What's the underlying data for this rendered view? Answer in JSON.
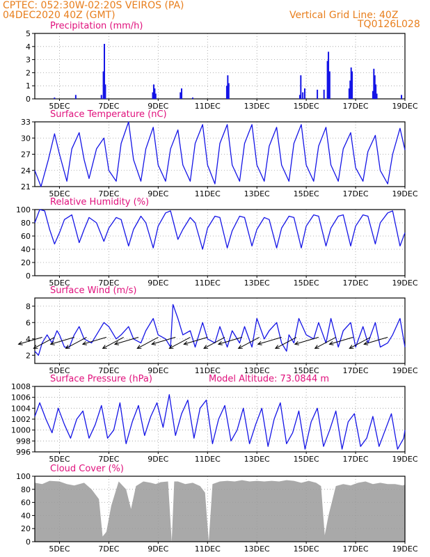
{
  "header": {
    "line1_left": "CPTEC:   052:30W-02:20S   VEIROS (PA)",
    "line2_left": "04DEC2020 40Z (GMT)",
    "line1_right": "Vertical Grid Line: 40Z",
    "line2_right": "TQ0126L028"
  },
  "chart_data": [
    {
      "type": "bar",
      "title": "Precipitation (mm/h)",
      "ylim": [
        0,
        5
      ],
      "yticks": [
        "0",
        "1",
        "2",
        "3",
        "4",
        "5"
      ],
      "xticks": [
        "5DEC",
        "7DEC",
        "9DEC",
        "11DEC",
        "13DEC",
        "15DEC",
        "17DEC",
        "19DEC"
      ],
      "color": "#1414e6",
      "grid": true,
      "bars": [
        {
          "day": 4.8,
          "value": 0.1
        },
        {
          "day": 5.66,
          "value": 0.3
        },
        {
          "day": 6.7,
          "value": 0.3
        },
        {
          "day": 6.78,
          "value": 2.1
        },
        {
          "day": 6.82,
          "value": 4.2
        },
        {
          "day": 6.86,
          "value": 1.1
        },
        {
          "day": 8.78,
          "value": 0.5
        },
        {
          "day": 8.82,
          "value": 1.1
        },
        {
          "day": 8.86,
          "value": 0.8
        },
        {
          "day": 8.9,
          "value": 0.4
        },
        {
          "day": 9.9,
          "value": 0.5
        },
        {
          "day": 9.95,
          "value": 0.8
        },
        {
          "day": 10.4,
          "value": 0.1
        },
        {
          "day": 11.78,
          "value": 1.0
        },
        {
          "day": 11.82,
          "value": 1.8
        },
        {
          "day": 11.86,
          "value": 1.2
        },
        {
          "day": 14.74,
          "value": 0.3
        },
        {
          "day": 14.78,
          "value": 1.8
        },
        {
          "day": 14.86,
          "value": 0.5
        },
        {
          "day": 14.94,
          "value": 0.8
        },
        {
          "day": 15.45,
          "value": 0.7
        },
        {
          "day": 15.72,
          "value": 0.7
        },
        {
          "day": 15.86,
          "value": 2.9
        },
        {
          "day": 15.9,
          "value": 3.6
        },
        {
          "day": 15.95,
          "value": 2.1
        },
        {
          "day": 16.74,
          "value": 0.8
        },
        {
          "day": 16.78,
          "value": 1.4
        },
        {
          "day": 16.82,
          "value": 2.4
        },
        {
          "day": 16.86,
          "value": 2.1
        },
        {
          "day": 17.7,
          "value": 0.6
        },
        {
          "day": 17.74,
          "value": 2.3
        },
        {
          "day": 17.78,
          "value": 1.8
        },
        {
          "day": 17.82,
          "value": 1.1
        },
        {
          "day": 17.86,
          "value": 0.4
        },
        {
          "day": 18.86,
          "value": 0.3
        }
      ]
    },
    {
      "type": "line",
      "title": "Surface Temperature (nC)",
      "ylim": [
        21,
        33
      ],
      "yticks": [
        "21",
        "24",
        "27",
        "30",
        "33"
      ],
      "xticks": [
        "5DEC",
        "7DEC",
        "9DEC",
        "11DEC",
        "13DEC",
        "15DEC",
        "17DEC",
        "19DEC"
      ],
      "color": "#1414e6",
      "grid": true,
      "x": [
        4.0,
        4.25,
        4.55,
        4.8,
        5.0,
        5.3,
        5.5,
        5.8,
        6.0,
        6.2,
        6.5,
        6.8,
        7.0,
        7.3,
        7.5,
        7.8,
        8.0,
        8.3,
        8.5,
        8.8,
        9.0,
        9.3,
        9.5,
        9.8,
        10.0,
        10.3,
        10.5,
        10.8,
        11.0,
        11.3,
        11.5,
        11.8,
        12.0,
        12.3,
        12.5,
        12.8,
        13.0,
        13.3,
        13.5,
        13.8,
        14.0,
        14.3,
        14.5,
        14.8,
        15.0,
        15.3,
        15.5,
        15.8,
        16.0,
        16.3,
        16.5,
        16.8,
        17.0,
        17.3,
        17.5,
        17.8,
        18.0,
        18.3,
        18.5,
        18.8,
        19.0
      ],
      "y": [
        24.0,
        21.0,
        26.0,
        30.8,
        27.0,
        22.0,
        28.0,
        31.0,
        26.0,
        22.5,
        28.0,
        30.0,
        24.0,
        22.0,
        29.0,
        33.0,
        26.0,
        22.0,
        28.0,
        32.0,
        25.0,
        22.0,
        28.0,
        31.5,
        25.0,
        22.0,
        29.0,
        32.5,
        25.0,
        21.5,
        29.0,
        32.5,
        25.0,
        22.0,
        29.0,
        32.5,
        25.0,
        22.0,
        28.5,
        32.0,
        25.0,
        22.0,
        29.0,
        32.5,
        25.0,
        22.0,
        28.5,
        32.0,
        25.0,
        22.0,
        28.0,
        31.0,
        24.5,
        22.0,
        27.5,
        30.5,
        24.0,
        21.5,
        27.0,
        31.8,
        27.8
      ]
    },
    {
      "type": "line",
      "title": "Relative Humidity (%)",
      "ylim": [
        0,
        100
      ],
      "yticks": [
        "0",
        "20",
        "40",
        "60",
        "80",
        "100"
      ],
      "xticks": [
        "5DEC",
        "7DEC",
        "9DEC",
        "11DEC",
        "13DEC",
        "15DEC",
        "17DEC",
        "19DEC"
      ],
      "color": "#1414e6",
      "grid": true,
      "x": [
        4.0,
        4.2,
        4.4,
        4.6,
        4.8,
        5.0,
        5.2,
        5.5,
        5.8,
        6.0,
        6.2,
        6.5,
        6.8,
        7.0,
        7.3,
        7.5,
        7.8,
        8.0,
        8.3,
        8.5,
        8.8,
        9.0,
        9.3,
        9.5,
        9.8,
        10.0,
        10.3,
        10.5,
        10.8,
        11.0,
        11.3,
        11.5,
        11.8,
        12.0,
        12.3,
        12.5,
        12.8,
        13.0,
        13.3,
        13.5,
        13.8,
        14.0,
        14.3,
        14.5,
        14.8,
        15.0,
        15.3,
        15.5,
        15.8,
        16.0,
        16.3,
        16.5,
        16.8,
        17.0,
        17.3,
        17.5,
        17.8,
        18.0,
        18.3,
        18.5,
        18.8,
        19.0
      ],
      "y": [
        80,
        100,
        98,
        70,
        48,
        65,
        85,
        92,
        50,
        70,
        88,
        80,
        52,
        72,
        88,
        85,
        45,
        70,
        90,
        80,
        42,
        75,
        95,
        98,
        55,
        70,
        88,
        80,
        40,
        72,
        90,
        88,
        42,
        68,
        90,
        88,
        45,
        70,
        88,
        85,
        42,
        72,
        90,
        88,
        42,
        75,
        92,
        90,
        45,
        72,
        90,
        92,
        45,
        75,
        92,
        90,
        48,
        80,
        95,
        98,
        45,
        65
      ]
    },
    {
      "type": "line",
      "title": "Surface Wind (m/s)",
      "ylim": [
        1,
        9
      ],
      "yticks": [
        "2",
        "4",
        "6",
        "8"
      ],
      "xticks": [
        "5DEC",
        "7DEC",
        "9DEC",
        "11DEC",
        "13DEC",
        "15DEC",
        "17DEC",
        "19DEC"
      ],
      "color": "#1414e6",
      "grid": true,
      "x": [
        4.0,
        4.15,
        4.3,
        4.5,
        4.7,
        4.9,
        5.0,
        5.2,
        5.4,
        5.6,
        5.8,
        6.0,
        6.3,
        6.5,
        6.8,
        7.0,
        7.3,
        7.5,
        7.8,
        8.0,
        8.3,
        8.5,
        8.8,
        9.0,
        9.3,
        9.5,
        9.6,
        9.8,
        10.0,
        10.3,
        10.5,
        10.8,
        11.0,
        11.3,
        11.5,
        11.8,
        12.0,
        12.3,
        12.5,
        12.8,
        13.0,
        13.3,
        13.5,
        13.8,
        14.0,
        14.2,
        14.3,
        14.5,
        14.7,
        15.0,
        15.3,
        15.5,
        15.8,
        16.0,
        16.3,
        16.5,
        16.8,
        17.0,
        17.3,
        17.5,
        17.8,
        18.0,
        18.3,
        18.5,
        18.8,
        19.0
      ],
      "y": [
        2.5,
        2.0,
        3.5,
        4.5,
        3.5,
        5.0,
        4.5,
        3.0,
        3.0,
        4.5,
        5.5,
        4.0,
        3.5,
        4.5,
        6.0,
        5.5,
        4.0,
        4.5,
        5.5,
        4.0,
        3.5,
        5.0,
        6.5,
        4.5,
        4.0,
        3.0,
        8.2,
        6.5,
        4.5,
        5.0,
        3.0,
        6.0,
        4.0,
        3.5,
        5.5,
        3.0,
        5.0,
        3.5,
        5.5,
        3.0,
        6.5,
        4.0,
        5.0,
        6.0,
        3.5,
        2.5,
        4.5,
        3.5,
        6.5,
        4.5,
        4.0,
        6.0,
        3.5,
        6.5,
        3.0,
        5.0,
        6.0,
        3.0,
        5.5,
        3.5,
        6.0,
        3.0,
        3.5,
        4.5,
        6.5,
        3.0
      ],
      "arrows": [
        {
          "day": 4.3,
          "dir": "from-ENE"
        },
        {
          "day": 4.8,
          "dir": "from-NE"
        },
        {
          "day": 5.6,
          "dir": "from-ENE"
        },
        {
          "day": 6.1,
          "dir": "from-NE"
        },
        {
          "day": 6.9,
          "dir": "from-ENE"
        },
        {
          "day": 7.6,
          "dir": "from-NE"
        },
        {
          "day": 8.2,
          "dir": "from-ENE"
        },
        {
          "day": 9.0,
          "dir": "from-NE"
        },
        {
          "day": 9.7,
          "dir": "from-ENE"
        },
        {
          "day": 10.3,
          "dir": "from-NE"
        },
        {
          "day": 11.0,
          "dir": "from-ENE"
        },
        {
          "day": 11.7,
          "dir": "from-NE"
        },
        {
          "day": 12.4,
          "dir": "from-ENE"
        },
        {
          "day": 13.1,
          "dir": "from-NE"
        },
        {
          "day": 14.0,
          "dir": "from-ENE"
        },
        {
          "day": 14.6,
          "dir": "from-NE"
        },
        {
          "day": 15.5,
          "dir": "from-ENE"
        },
        {
          "day": 16.2,
          "dir": "from-NE"
        },
        {
          "day": 16.9,
          "dir": "from-ENE"
        },
        {
          "day": 17.6,
          "dir": "from-NE"
        },
        {
          "day": 18.3,
          "dir": "from-ENE"
        }
      ]
    },
    {
      "type": "line",
      "title": "Surface Pressure (hPa)",
      "annotation": "Model Altitude: 73.0844 m",
      "ylim": [
        996,
        1008
      ],
      "yticks": [
        "996",
        "998",
        "1000",
        "1002",
        "1004",
        "1006",
        "1008"
      ],
      "xticks": [
        "5DEC",
        "7DEC",
        "9DEC",
        "11DEC",
        "13DEC",
        "15DEC",
        "17DEC",
        "19DEC"
      ],
      "color": "#1414e6",
      "grid": true,
      "x": [
        4.0,
        4.2,
        4.45,
        4.7,
        4.95,
        5.2,
        5.45,
        5.7,
        5.95,
        6.2,
        6.45,
        6.7,
        6.95,
        7.2,
        7.45,
        7.7,
        7.95,
        8.2,
        8.45,
        8.7,
        8.95,
        9.2,
        9.45,
        9.7,
        9.95,
        10.2,
        10.45,
        10.7,
        10.95,
        11.2,
        11.45,
        11.7,
        11.95,
        12.2,
        12.45,
        12.7,
        12.95,
        13.2,
        13.45,
        13.7,
        13.95,
        14.2,
        14.45,
        14.7,
        14.95,
        15.2,
        15.45,
        15.7,
        15.95,
        16.2,
        16.45,
        16.7,
        16.95,
        17.2,
        17.45,
        17.7,
        17.95,
        18.2,
        18.45,
        18.7,
        18.95,
        19.0
      ],
      "y": [
        1002.5,
        1005.0,
        1002.0,
        999.5,
        1004.0,
        1001.0,
        998.5,
        1002.0,
        1003.5,
        998.5,
        1001.0,
        1004.5,
        998.5,
        1000.0,
        1005.0,
        997.5,
        1001.5,
        1004.5,
        999.0,
        1002.5,
        1005.0,
        1000.5,
        1006.5,
        999.0,
        1003.0,
        1005.5,
        998.5,
        1004.0,
        1005.5,
        997.5,
        1002.0,
        1004.5,
        998.0,
        1000.0,
        1004.0,
        997.5,
        1001.0,
        1004.0,
        997.0,
        1002.0,
        1005.0,
        997.5,
        999.5,
        1003.5,
        996.5,
        1001.5,
        1004.0,
        997.0,
        1000.0,
        1003.5,
        996.5,
        1001.5,
        1003.0,
        997.0,
        998.5,
        1002.5,
        997.0,
        1000.0,
        1003.0,
        996.5,
        998.5,
        1000.0
      ]
    },
    {
      "type": "area",
      "title": "Cloud Cover (%)",
      "ylim": [
        0,
        100
      ],
      "yticks": [
        "0",
        "20",
        "40",
        "60",
        "80",
        "100"
      ],
      "xticks": [
        "5DEC",
        "7DEC",
        "9DEC",
        "11DEC",
        "13DEC",
        "15DEC",
        "17DEC",
        "19DEC"
      ],
      "color": "#a9a9a9",
      "grid": true,
      "x": [
        4.0,
        4.3,
        4.6,
        5.0,
        5.3,
        5.6,
        6.0,
        6.3,
        6.6,
        6.75,
        6.9,
        7.1,
        7.4,
        7.7,
        7.9,
        8.1,
        8.4,
        8.7,
        8.9,
        9.1,
        9.4,
        9.55,
        9.65,
        9.8,
        10.1,
        10.4,
        10.7,
        10.9,
        11.05,
        11.2,
        11.5,
        11.8,
        12.1,
        12.4,
        12.7,
        13.0,
        13.3,
        13.6,
        13.9,
        14.2,
        14.5,
        14.8,
        15.1,
        15.4,
        15.6,
        15.75,
        15.9,
        16.2,
        16.5,
        16.8,
        17.1,
        17.4,
        17.7,
        18.0,
        18.3,
        18.6,
        18.9,
        19.0
      ],
      "y": [
        90,
        88,
        93,
        92,
        88,
        86,
        90,
        80,
        65,
        8,
        15,
        55,
        92,
        80,
        50,
        85,
        92,
        90,
        88,
        91,
        92,
        0,
        92,
        92,
        88,
        90,
        85,
        75,
        0,
        88,
        92,
        93,
        92,
        94,
        92,
        93,
        92,
        93,
        92,
        94,
        93,
        90,
        93,
        90,
        85,
        10,
        40,
        85,
        88,
        86,
        90,
        92,
        88,
        90,
        88,
        88,
        86,
        87
      ]
    }
  ]
}
